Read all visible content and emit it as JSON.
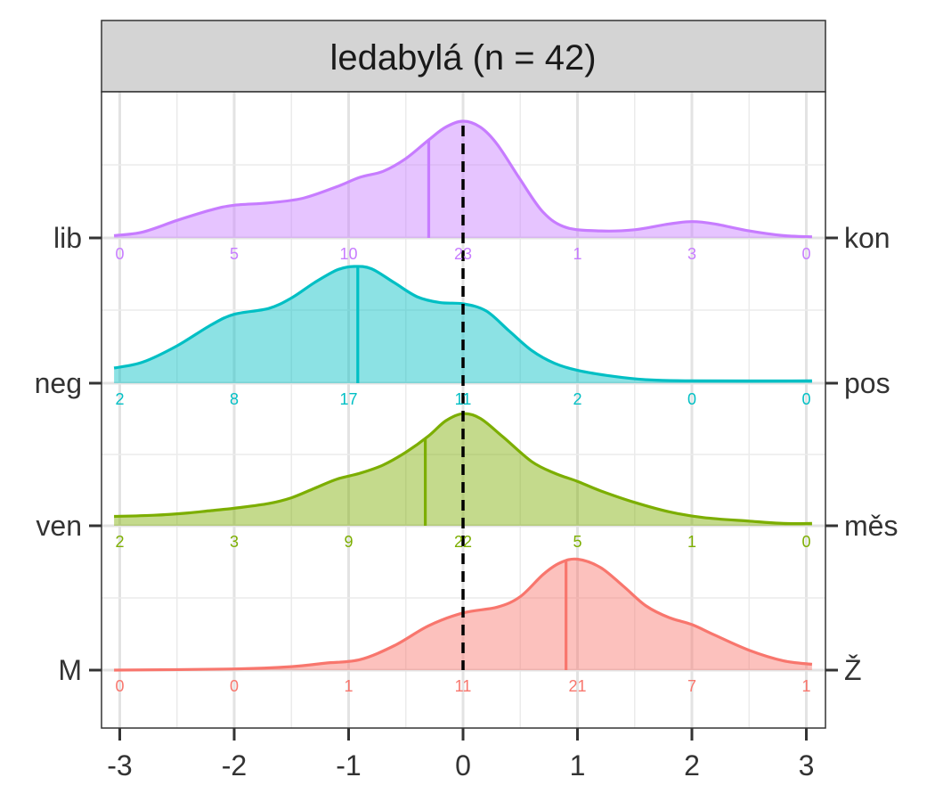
{
  "chart_data": {
    "type": "ridgeline-density",
    "title": "ledabylá (n = 42)",
    "xlim": [
      -3,
      3
    ],
    "x_ticks": [
      -3,
      -2,
      -1,
      0,
      1,
      2,
      3
    ],
    "x_tick_labels": [
      "-3",
      "-2",
      "-1",
      "0",
      "1",
      "2",
      "3"
    ],
    "reference_line_x": 0,
    "grid": true,
    "count_positions": [
      -3,
      -2,
      -1,
      0,
      1,
      2,
      3
    ],
    "series": [
      {
        "left_label": "lib",
        "right_label": "kon",
        "color": "#C77CFF",
        "mean": -0.3,
        "counts": [
          "0",
          "5",
          "10",
          "23",
          "1",
          "3",
          "0"
        ],
        "density": [
          [
            -3.05,
            0.02
          ],
          [
            -2.8,
            0.05
          ],
          [
            -2.5,
            0.15
          ],
          [
            -2.2,
            0.24
          ],
          [
            -2,
            0.28
          ],
          [
            -1.7,
            0.3
          ],
          [
            -1.4,
            0.34
          ],
          [
            -1.1,
            0.44
          ],
          [
            -0.9,
            0.52
          ],
          [
            -0.7,
            0.57
          ],
          [
            -0.5,
            0.68
          ],
          [
            -0.3,
            0.84
          ],
          [
            -0.15,
            0.95
          ],
          [
            0,
            1.0
          ],
          [
            0.15,
            0.95
          ],
          [
            0.3,
            0.8
          ],
          [
            0.5,
            0.5
          ],
          [
            0.7,
            0.22
          ],
          [
            0.9,
            0.09
          ],
          [
            1.2,
            0.06
          ],
          [
            1.5,
            0.07
          ],
          [
            1.8,
            0.12
          ],
          [
            2,
            0.14
          ],
          [
            2.2,
            0.12
          ],
          [
            2.5,
            0.06
          ],
          [
            2.8,
            0.02
          ],
          [
            3.05,
            0.01
          ]
        ]
      },
      {
        "left_label": "neg",
        "right_label": "pos",
        "color": "#00BFC4",
        "mean": -0.92,
        "counts": [
          "2",
          "8",
          "17",
          "11",
          "2",
          "0",
          "0"
        ],
        "density": [
          [
            -3.05,
            0.13
          ],
          [
            -2.8,
            0.18
          ],
          [
            -2.5,
            0.32
          ],
          [
            -2.2,
            0.5
          ],
          [
            -2,
            0.59
          ],
          [
            -1.7,
            0.64
          ],
          [
            -1.5,
            0.73
          ],
          [
            -1.3,
            0.86
          ],
          [
            -1.1,
            0.97
          ],
          [
            -0.95,
            1.0
          ],
          [
            -0.8,
            0.98
          ],
          [
            -0.6,
            0.86
          ],
          [
            -0.4,
            0.74
          ],
          [
            -0.2,
            0.69
          ],
          [
            0,
            0.68
          ],
          [
            0.2,
            0.62
          ],
          [
            0.4,
            0.45
          ],
          [
            0.6,
            0.28
          ],
          [
            0.8,
            0.17
          ],
          [
            1,
            0.11
          ],
          [
            1.3,
            0.06
          ],
          [
            1.6,
            0.03
          ],
          [
            2,
            0.02
          ],
          [
            3.05,
            0.02
          ]
        ]
      },
      {
        "left_label": "ven",
        "right_label": "měs",
        "color": "#7CAE00",
        "mean": -0.33,
        "counts": [
          "2",
          "3",
          "9",
          "22",
          "5",
          "1",
          "0"
        ],
        "density": [
          [
            -3.05,
            0.08
          ],
          [
            -2.7,
            0.09
          ],
          [
            -2.4,
            0.11
          ],
          [
            -2.2,
            0.13
          ],
          [
            -2,
            0.15
          ],
          [
            -1.7,
            0.19
          ],
          [
            -1.5,
            0.24
          ],
          [
            -1.3,
            0.32
          ],
          [
            -1.1,
            0.4
          ],
          [
            -0.9,
            0.45
          ],
          [
            -0.7,
            0.52
          ],
          [
            -0.5,
            0.63
          ],
          [
            -0.3,
            0.77
          ],
          [
            -0.15,
            0.9
          ],
          [
            0,
            0.96
          ],
          [
            0.15,
            0.92
          ],
          [
            0.35,
            0.76
          ],
          [
            0.6,
            0.55
          ],
          [
            0.8,
            0.45
          ],
          [
            1,
            0.38
          ],
          [
            1.2,
            0.3
          ],
          [
            1.5,
            0.2
          ],
          [
            1.8,
            0.12
          ],
          [
            2.1,
            0.07
          ],
          [
            2.5,
            0.04
          ],
          [
            2.8,
            0.02
          ],
          [
            3.05,
            0.02
          ]
        ]
      },
      {
        "left_label": "M",
        "right_label": "Ž",
        "color": "#F8766D",
        "mean": 0.9,
        "counts": [
          "0",
          "0",
          "1",
          "11",
          "21",
          "7",
          "1"
        ],
        "density": [
          [
            -3.05,
            0
          ],
          [
            -2,
            0.01
          ],
          [
            -1.5,
            0.03
          ],
          [
            -1.2,
            0.06
          ],
          [
            -0.9,
            0.09
          ],
          [
            -0.6,
            0.21
          ],
          [
            -0.3,
            0.38
          ],
          [
            0,
            0.49
          ],
          [
            0.3,
            0.54
          ],
          [
            0.5,
            0.63
          ],
          [
            0.7,
            0.82
          ],
          [
            0.85,
            0.92
          ],
          [
            1,
            0.95
          ],
          [
            1.2,
            0.88
          ],
          [
            1.4,
            0.72
          ],
          [
            1.6,
            0.55
          ],
          [
            1.8,
            0.45
          ],
          [
            2,
            0.39
          ],
          [
            2.2,
            0.3
          ],
          [
            2.5,
            0.17
          ],
          [
            2.8,
            0.08
          ],
          [
            3.05,
            0.05
          ]
        ]
      }
    ]
  }
}
